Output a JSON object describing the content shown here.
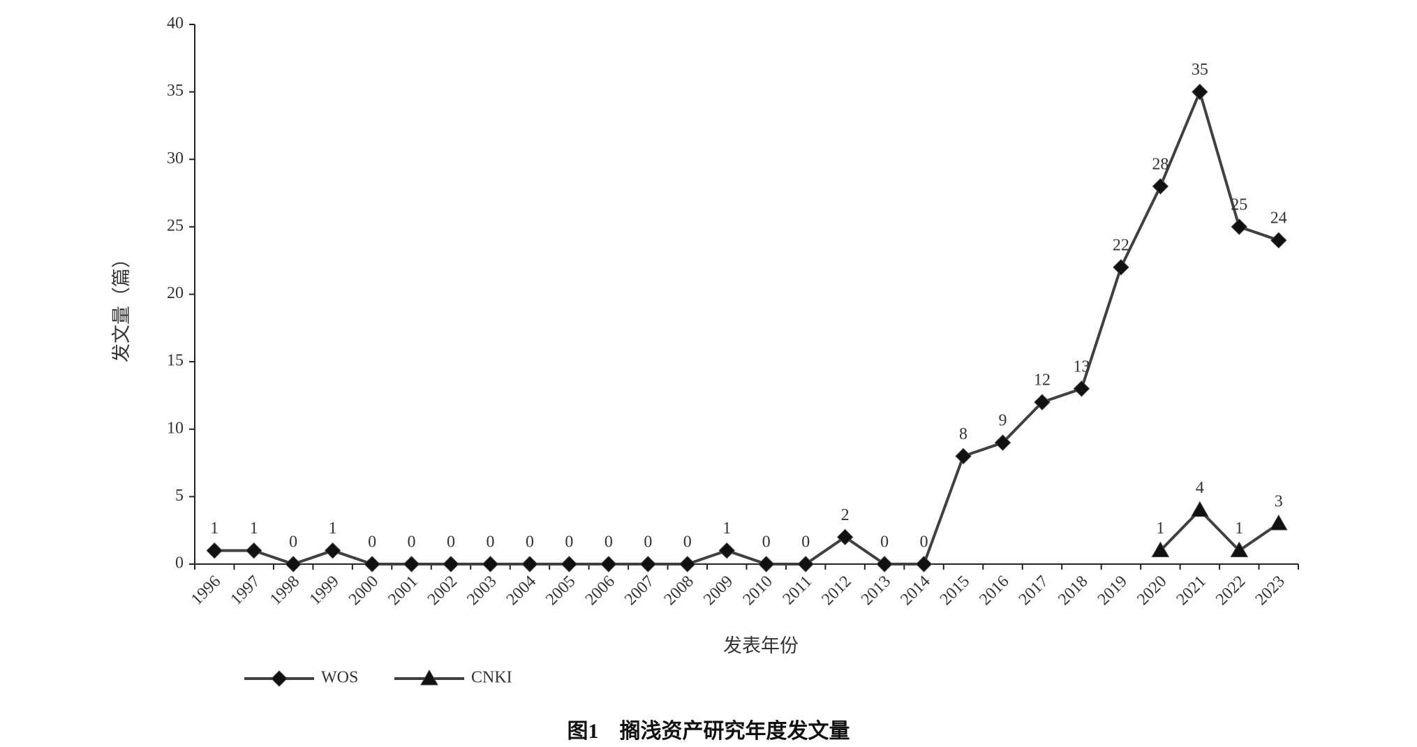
{
  "chart_data": {
    "type": "line",
    "caption": "图1　搁浅资产研究年度发文量",
    "x_label": "发表年份",
    "y_label": "发文量（篇）",
    "categories": [
      "1996",
      "1997",
      "1998",
      "1999",
      "2000",
      "2001",
      "2002",
      "2003",
      "2004",
      "2005",
      "2006",
      "2007",
      "2008",
      "2009",
      "2010",
      "2011",
      "2012",
      "2013",
      "2014",
      "2015",
      "2016",
      "2017",
      "2018",
      "2019",
      "2020",
      "2021",
      "2022",
      "2023"
    ],
    "series": [
      {
        "name": "WOS",
        "color": "#404040",
        "marker": "diamond",
        "values": [
          1,
          1,
          0,
          1,
          0,
          0,
          0,
          0,
          0,
          0,
          0,
          0,
          0,
          1,
          0,
          0,
          2,
          0,
          0,
          8,
          9,
          12,
          13,
          22,
          28,
          35,
          25,
          24
        ]
      },
      {
        "name": "CNKI",
        "color": "#404040",
        "marker": "triangle",
        "values": [
          null,
          null,
          null,
          null,
          null,
          null,
          null,
          null,
          null,
          null,
          null,
          null,
          null,
          null,
          null,
          null,
          null,
          null,
          null,
          null,
          null,
          null,
          null,
          null,
          1,
          4,
          1,
          3
        ]
      }
    ],
    "ylim": [
      0,
      40
    ],
    "yticks": [
      0,
      5,
      10,
      15,
      20,
      25,
      30,
      35,
      40
    ],
    "grid": false,
    "legend": "bottom-left"
  }
}
